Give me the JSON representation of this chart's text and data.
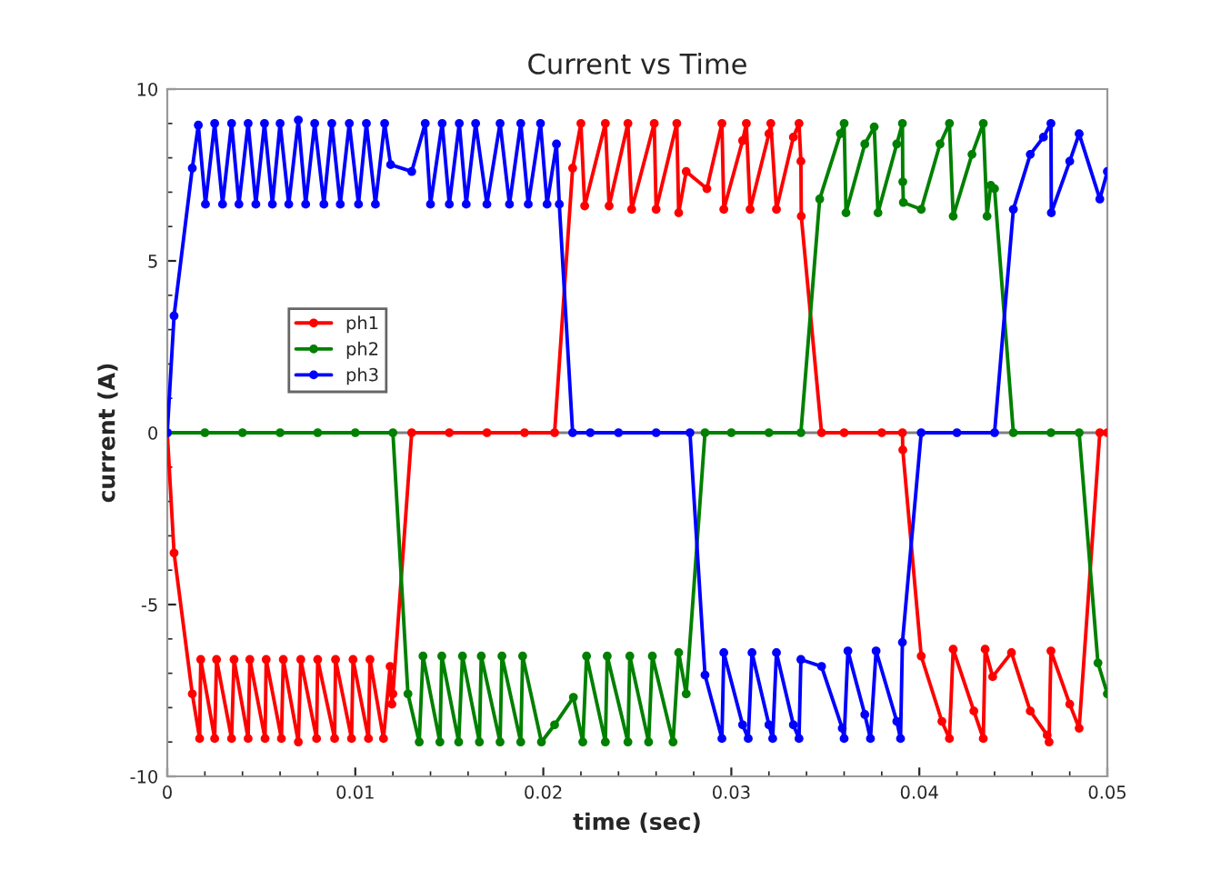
{
  "chart_data": {
    "type": "line",
    "title": "Current vs Time",
    "xlabel": "time (sec)",
    "ylabel": "current (A)",
    "xlim": [
      0,
      0.05
    ],
    "xticks": [
      0,
      0.01,
      0.02,
      0.03,
      0.04,
      0.05
    ],
    "ylim": [
      -10,
      10
    ],
    "yticks": [
      -10,
      -5,
      0,
      5,
      10
    ],
    "grid": false,
    "legend": "left",
    "marker": "circle",
    "line_style": "solid",
    "ref_lines": [
      {
        "axis": "y",
        "value": 0,
        "color": "#808080"
      }
    ],
    "series": [
      {
        "name": "ph1",
        "color": "#ff0000",
        "x": [
          0,
          0.00036,
          0.00133,
          0.00172,
          0.00178,
          0.00252,
          0.00262,
          0.00342,
          0.00355,
          0.0043,
          0.00439,
          0.0052,
          0.00526,
          0.00607,
          0.00617,
          0.00697,
          0.0071,
          0.00794,
          0.008,
          0.0089,
          0.00895,
          0.0098,
          0.00988,
          0.0107,
          0.01078,
          0.0115,
          0.01185,
          0.01195,
          0.012,
          0.013,
          0.015,
          0.017,
          0.019,
          0.0206,
          0.02156,
          0.022,
          0.0222,
          0.0233,
          0.0235,
          0.0245,
          0.0247,
          0.0259,
          0.026,
          0.0271,
          0.0272,
          0.0276,
          0.0287,
          0.0295,
          0.0296,
          0.0306,
          0.0308,
          0.031,
          0.032,
          0.0321,
          0.0324,
          0.0333,
          0.0336,
          0.0337,
          0.03372,
          0.0348,
          0.036,
          0.038,
          0.0391,
          0.03912,
          0.0401,
          0.0412,
          0.0416,
          0.0418,
          0.0429,
          0.0434,
          0.0435,
          0.0439,
          0.0449,
          0.0459,
          0.0468,
          0.0469,
          0.047,
          0.048,
          0.0485,
          0.0496,
          0.05
        ],
        "values": [
          0,
          -3.5,
          -7.6,
          -8.9,
          -6.6,
          -8.9,
          -6.6,
          -8.9,
          -6.6,
          -8.9,
          -6.6,
          -8.9,
          -6.6,
          -8.9,
          -6.6,
          -9.0,
          -6.6,
          -8.9,
          -6.6,
          -8.9,
          -6.6,
          -8.9,
          -6.6,
          -8.9,
          -6.6,
          -8.9,
          -6.8,
          -7.9,
          -7.6,
          0,
          0,
          0,
          0,
          0,
          7.7,
          9.0,
          6.6,
          9.0,
          6.6,
          9.0,
          6.5,
          9.0,
          6.5,
          9.0,
          6.4,
          7.6,
          7.1,
          9.0,
          6.5,
          8.5,
          9.0,
          6.5,
          8.7,
          9.0,
          6.5,
          8.6,
          9.0,
          7.9,
          6.3,
          0,
          0,
          0,
          0,
          -0.5,
          -6.5,
          -8.4,
          -8.9,
          -6.3,
          -8.1,
          -8.9,
          -6.3,
          -7.1,
          -6.4,
          -8.1,
          -8.8,
          -9.0,
          -6.35,
          -7.9,
          -8.6,
          0,
          0
        ]
      },
      {
        "name": "ph2",
        "color": "#008000",
        "x": [
          0,
          0.002,
          0.004,
          0.006,
          0.008,
          0.01,
          0.012,
          0.0128,
          0.0134,
          0.0136,
          0.0145,
          0.0146,
          0.0155,
          0.0157,
          0.0166,
          0.0167,
          0.0177,
          0.0178,
          0.0188,
          0.0189,
          0.0199,
          0.0206,
          0.0216,
          0.0221,
          0.0223,
          0.0233,
          0.0234,
          0.0245,
          0.0246,
          0.0256,
          0.0258,
          0.0269,
          0.0272,
          0.0276,
          0.0286,
          0.03,
          0.032,
          0.0337,
          0.0347,
          0.0358,
          0.036,
          0.0361,
          0.0371,
          0.0376,
          0.0378,
          0.0388,
          0.0391,
          0.03912,
          0.03915,
          0.0401,
          0.0411,
          0.0416,
          0.0418,
          0.0428,
          0.0434,
          0.0436,
          0.0438,
          0.044,
          0.045,
          0.047,
          0.0485,
          0.0495,
          0.05
        ],
        "values": [
          0,
          0,
          0,
          0,
          0,
          0,
          0,
          -7.6,
          -9.0,
          -6.5,
          -9.0,
          -6.5,
          -9.0,
          -6.5,
          -9.0,
          -6.5,
          -9.0,
          -6.5,
          -9.0,
          -6.5,
          -9.0,
          -8.5,
          -7.7,
          -9.0,
          -6.5,
          -9.0,
          -6.5,
          -9.0,
          -6.5,
          -9.0,
          -6.5,
          -9.0,
          -6.4,
          -7.6,
          0,
          0,
          0,
          0,
          6.8,
          8.7,
          9.0,
          6.4,
          8.4,
          8.9,
          6.4,
          8.4,
          9.0,
          7.3,
          6.7,
          6.5,
          8.4,
          9.0,
          6.3,
          8.1,
          9.0,
          6.3,
          7.2,
          7.1,
          0,
          0,
          0,
          -6.7,
          -7.6
        ]
      },
      {
        "name": "ph3",
        "color": "#0000ff",
        "x": [
          0,
          0.00036,
          0.00133,
          0.00165,
          0.00203,
          0.00252,
          0.00294,
          0.00342,
          0.00381,
          0.0043,
          0.00471,
          0.00517,
          0.00559,
          0.006,
          0.00646,
          0.00697,
          0.00736,
          0.00784,
          0.00833,
          0.00875,
          0.0092,
          0.00968,
          0.01017,
          0.01059,
          0.01107,
          0.01156,
          0.01188,
          0.013,
          0.01372,
          0.014,
          0.01462,
          0.015,
          0.01553,
          0.0159,
          0.0164,
          0.017,
          0.0177,
          0.0182,
          0.0188,
          0.0192,
          0.01985,
          0.0202,
          0.0207,
          0.02085,
          0.02156,
          0.0225,
          0.024,
          0.026,
          0.0278,
          0.0286,
          0.0295,
          0.0296,
          0.0306,
          0.0309,
          0.0311,
          0.032,
          0.0322,
          0.0324,
          0.0333,
          0.0336,
          0.0337,
          0.0348,
          0.0359,
          0.036,
          0.0362,
          0.0371,
          0.0374,
          0.0377,
          0.0388,
          0.039,
          0.0391,
          0.0401,
          0.042,
          0.044,
          0.045,
          0.0459,
          0.0466,
          0.047,
          0.04702,
          0.048,
          0.0485,
          0.0496,
          0.05
        ],
        "values": [
          0,
          3.4,
          7.7,
          8.95,
          6.65,
          9.0,
          6.65,
          9.0,
          6.65,
          9.0,
          6.65,
          9.0,
          6.65,
          9.0,
          6.65,
          9.1,
          6.65,
          9.0,
          6.65,
          9.0,
          6.65,
          9.0,
          6.65,
          9.0,
          6.65,
          9.0,
          7.8,
          7.6,
          9.0,
          6.65,
          9.0,
          6.65,
          9.0,
          6.65,
          9.0,
          6.65,
          9.0,
          6.65,
          9.0,
          6.65,
          9.0,
          6.65,
          8.4,
          6.65,
          0,
          0,
          0,
          0,
          0,
          -7.05,
          -8.9,
          -6.4,
          -8.5,
          -8.9,
          -6.4,
          -8.5,
          -8.9,
          -6.4,
          -8.5,
          -8.9,
          -6.6,
          -6.8,
          -8.6,
          -8.9,
          -6.35,
          -8.2,
          -8.9,
          -6.35,
          -8.4,
          -8.9,
          -6.1,
          0,
          0,
          0,
          6.5,
          8.1,
          8.6,
          9.0,
          6.4,
          7.9,
          8.7,
          6.8,
          7.6
        ]
      }
    ]
  }
}
